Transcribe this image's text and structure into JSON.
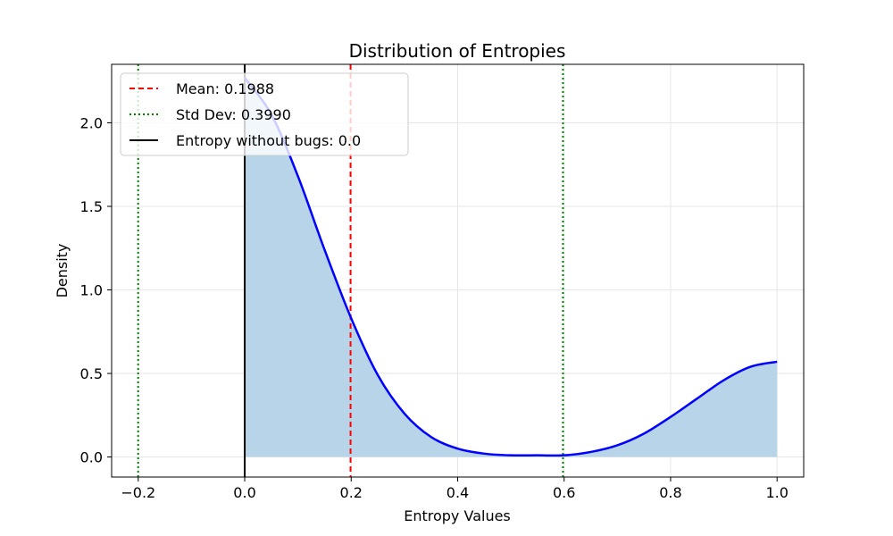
{
  "chart_data": {
    "type": "area",
    "title": "Distribution of Entropies",
    "xlabel": "Entropy Values",
    "ylabel": "Density",
    "xlim": [
      -0.25,
      1.05
    ],
    "ylim": [
      -0.12,
      2.35
    ],
    "xticks": [
      -0.2,
      0.0,
      0.2,
      0.4,
      0.6,
      0.8,
      1.0
    ],
    "xtick_labels": [
      "−0.2",
      "0.0",
      "0.2",
      "0.4",
      "0.6",
      "0.8",
      "1.0"
    ],
    "yticks": [
      0.0,
      0.5,
      1.0,
      1.5,
      2.0
    ],
    "ytick_labels": [
      "0.0",
      "0.5",
      "1.0",
      "1.5",
      "2.0"
    ],
    "grid": true,
    "legend_position": "top-left",
    "density_curve": {
      "color": "#0000ff",
      "fill_color": "#b8d4e8",
      "x": [
        0.0,
        0.05,
        0.1,
        0.15,
        0.2,
        0.25,
        0.3,
        0.35,
        0.4,
        0.45,
        0.5,
        0.55,
        0.6,
        0.65,
        0.7,
        0.75,
        0.8,
        0.85,
        0.9,
        0.95,
        1.0
      ],
      "y": [
        2.27,
        2.05,
        1.68,
        1.24,
        0.83,
        0.49,
        0.26,
        0.12,
        0.05,
        0.02,
        0.01,
        0.01,
        0.01,
        0.03,
        0.07,
        0.14,
        0.24,
        0.35,
        0.46,
        0.54,
        0.57
      ]
    },
    "reference_lines": [
      {
        "label": "Mean: 0.1988",
        "x": 0.1988,
        "color": "#ff0000",
        "style": "dashed"
      },
      {
        "label": "Std Dev: 0.3990",
        "x": [
          -0.2002,
          0.5978
        ],
        "color": "#008000",
        "style": "dotted"
      },
      {
        "label": "Entropy without bugs: 0.0",
        "x": 0.0,
        "color": "#000000",
        "style": "solid"
      }
    ]
  }
}
